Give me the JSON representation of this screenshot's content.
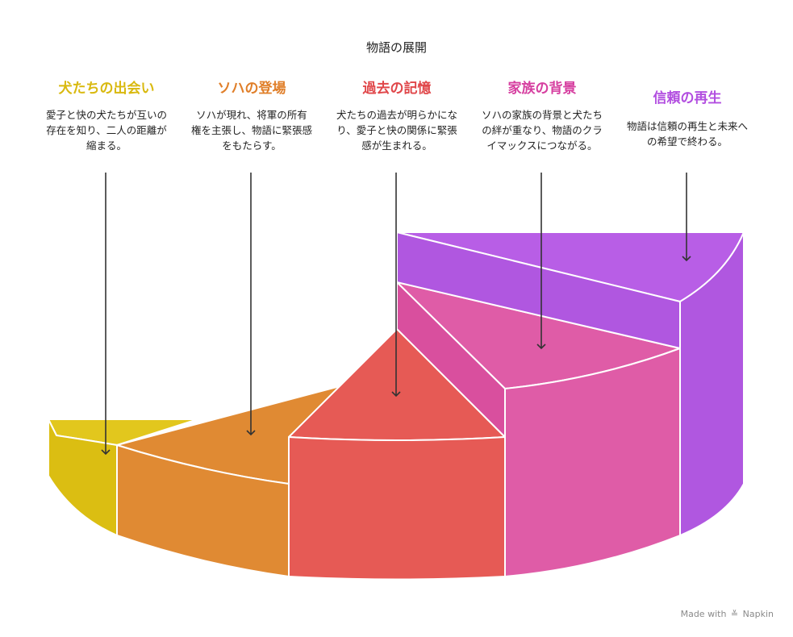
{
  "title": "物語の展開",
  "stages": [
    {
      "heading": "犬たちの出会い",
      "description": "愛子と快の犬たちが互いの存在を知り、二人の距離が縮まる。",
      "color": "#d9b90f"
    },
    {
      "heading": "ソハの登場",
      "description": "ソハが現れ、将軍の所有権を主張し、物語に緊張感をもたらす。",
      "color": "#e07f2a"
    },
    {
      "heading": "過去の記憶",
      "description": "犬たちの過去が明らかになり、愛子と快の関係に緊張感が生まれる。",
      "color": "#e0474a"
    },
    {
      "heading": "家族の背景",
      "description": "ソハの家族の背景と犬たちの絆が重なり、物語のクライマックスにつながる。",
      "color": "#d63fa0"
    },
    {
      "heading": "信頼の再生",
      "description": "物語は信頼の再生と未来への希望で終わる。",
      "color": "#b24ee0"
    }
  ],
  "watermark": {
    "prefix": "Made with",
    "brand": "Napkin"
  }
}
